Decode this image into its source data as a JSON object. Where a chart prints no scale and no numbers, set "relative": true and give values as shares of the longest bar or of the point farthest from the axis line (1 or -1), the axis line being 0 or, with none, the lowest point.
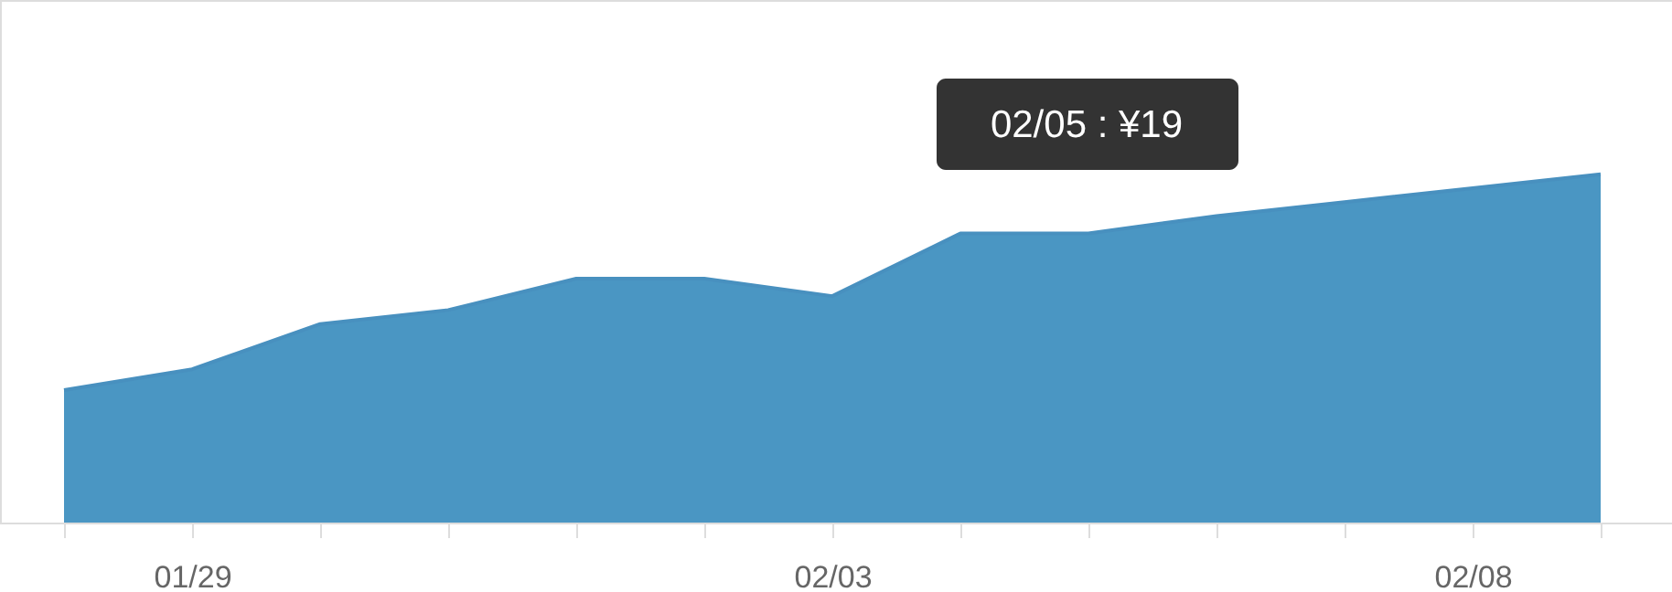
{
  "chart_data": {
    "type": "area",
    "relative": true,
    "categories": [
      null,
      "01/29",
      null,
      null,
      null,
      null,
      "02/03",
      null,
      null,
      null,
      null,
      "02/08",
      null
    ],
    "series": [
      {
        "color": "#4a96c3",
        "values": [
          0.38,
          0.44,
          0.57,
          0.61,
          0.7,
          0.7,
          0.65,
          0.83,
          0.83,
          0.88,
          0.92,
          0.96,
          1.0
        ]
      }
    ],
    "annotations": [
      "02/05 : ¥19"
    ]
  }
}
